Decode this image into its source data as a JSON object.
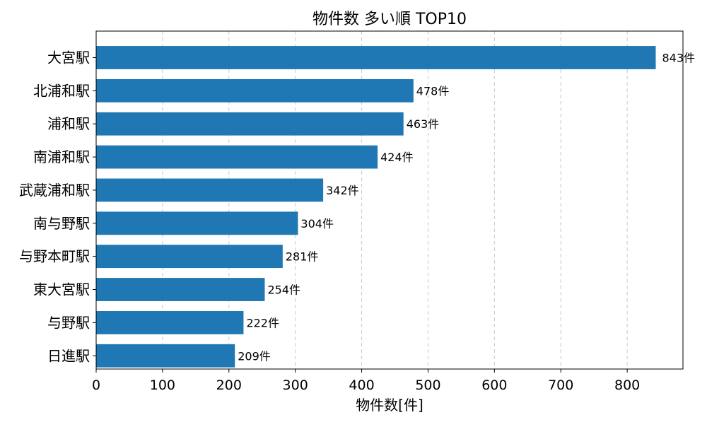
{
  "chart_data": {
    "type": "bar",
    "orientation": "horizontal",
    "title": "物件数 多い順 TOP10",
    "xlabel": "物件数[件]",
    "ylabel": "",
    "categories": [
      "大宮駅",
      "北浦和駅",
      "浦和駅",
      "南浦和駅",
      "武蔵浦和駅",
      "南与野駅",
      "与野本町駅",
      "東大宮駅",
      "与野駅",
      "日進駅"
    ],
    "values": [
      843,
      478,
      463,
      424,
      342,
      304,
      281,
      254,
      222,
      209
    ],
    "value_labels": [
      "843件",
      "478件",
      "463件",
      "424件",
      "342件",
      "304件",
      "281件",
      "254件",
      "222件",
      "209件"
    ],
    "xlim": [
      0,
      884
    ],
    "xticks": [
      0,
      100,
      200,
      300,
      400,
      500,
      600,
      700,
      800
    ],
    "grid": "x-dashed",
    "bar_color": "#1f77b4"
  }
}
